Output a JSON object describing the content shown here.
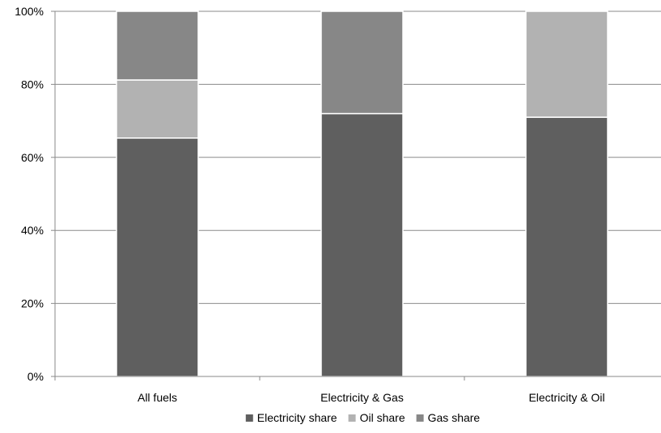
{
  "chart_data": {
    "type": "bar",
    "stacked": true,
    "percent_stacked": true,
    "categories": [
      "All fuels",
      "Electricity & Gas",
      "Electricity & Oil"
    ],
    "series": [
      {
        "name": "Electricity share",
        "values": [
          65.3,
          72.0,
          71.0
        ],
        "color": "#5f5f5f"
      },
      {
        "name": "Oil share",
        "values": [
          15.9,
          0,
          29.0
        ],
        "color": "#b2b2b2"
      },
      {
        "name": "Gas share",
        "values": [
          18.8,
          28.0,
          0
        ],
        "color": "#878787"
      }
    ],
    "y_ticks": [
      "0%",
      "20%",
      "40%",
      "60%",
      "80%",
      "100%"
    ],
    "ylim": [
      0,
      100
    ],
    "grid": true,
    "legend_position": "bottom"
  }
}
